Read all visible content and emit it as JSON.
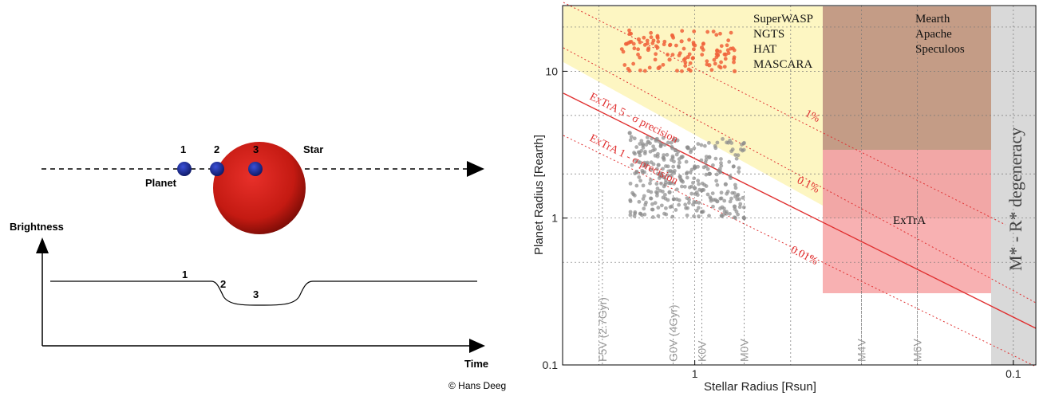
{
  "transit_diagram": {
    "star_label": "Star",
    "planet_label": "Planet",
    "brightness_label": "Brightness",
    "time_label": "Time",
    "positions": [
      "1",
      "2",
      "3"
    ],
    "lightcurve_labels": [
      "1",
      "2",
      "3"
    ],
    "credit": "© Hans Deeg",
    "colors": {
      "star": "#c41a12",
      "planet": "#1a2a9a"
    }
  },
  "chart_data": {
    "type": "scatter",
    "xlabel": "Stellar Radius [Rsun]",
    "ylabel": "Planet Radius [Rearth]",
    "x_scale": "log",
    "y_scale": "log",
    "x_axis_reversed": true,
    "xlim": [
      2.6,
      0.085
    ],
    "ylim": [
      0.1,
      28
    ],
    "x_ticks": [
      {
        "value": 1,
        "label": "1"
      },
      {
        "value": 0.1,
        "label": "0.1"
      }
    ],
    "y_ticks": [
      {
        "value": 0.1,
        "label": "0.1"
      },
      {
        "value": 1,
        "label": "1"
      },
      {
        "value": 10,
        "label": "10"
      }
    ],
    "grid": true,
    "spectral_types": [
      {
        "label": "F5V (2.7Gyr)",
        "x": 1.95
      },
      {
        "label": "G0V (4Gyr)",
        "x": 1.17
      },
      {
        "label": "K0V",
        "x": 0.95
      },
      {
        "label": "M0V",
        "x": 0.7
      },
      {
        "label": "M4V",
        "x": 0.3
      },
      {
        "label": "M6V",
        "x": 0.2
      }
    ],
    "regions": [
      {
        "label_lines": [
          "SuperWASP",
          "NGTS",
          "HAT",
          "MASCARA"
        ],
        "x_range": [
          2.6,
          0.3
        ],
        "y_range": [
          1.2,
          28
        ],
        "color": "#fdf6c2"
      },
      {
        "label_lines": [
          "Mearth",
          "Apache",
          "Speculoos"
        ],
        "x_range": [
          0.3,
          0.12
        ],
        "y_range": [
          1.0,
          28
        ],
        "color": "#c49c86"
      },
      {
        "label_lines": [
          "ExTrA"
        ],
        "x_range": [
          0.3,
          0.12
        ],
        "y_range": [
          0.3,
          3.0
        ],
        "color": "#f7a8aa"
      },
      {
        "label_lines": [
          "M* - R* degeneracy"
        ],
        "x_range": [
          0.105,
          0.085
        ],
        "y_range": [
          0.1,
          28
        ],
        "color": "#d9d9d9"
      }
    ],
    "precision_lines": [
      {
        "label": "1%",
        "style": "dotted"
      },
      {
        "label": "0.1%",
        "style": "dotted"
      },
      {
        "label": "0.01%",
        "style": "dotted"
      },
      {
        "label": "ExTrA 5 - σ precision",
        "style": "solid"
      },
      {
        "label": "ExTrA 1 - σ precision",
        "style": "dotted"
      }
    ],
    "colors": {
      "known_planets": "#8c8c8c",
      "hot_jupiters": "#f0623a",
      "extra_lines": "#e03030"
    },
    "series": [
      {
        "name": "",
        "color": "#8c8c8c",
        "points": [
          [
            1.0,
            2.2
          ],
          [
            1.1,
            1.8
          ],
          [
            0.9,
            2.6
          ],
          [
            1.2,
            1.5
          ],
          [
            0.85,
            1.3
          ],
          [
            1.05,
            3.0
          ],
          [
            1.3,
            2.3
          ],
          [
            0.95,
            1.1
          ],
          [
            0.8,
            1.7
          ],
          [
            1.15,
            2.9
          ],
          [
            1.4,
            3.3
          ],
          [
            0.75,
            1.2
          ],
          [
            1.0,
            1.6
          ],
          [
            0.9,
            2.0
          ],
          [
            1.25,
            1.9
          ],
          [
            1.6,
            3.8
          ],
          [
            0.7,
            1.0
          ],
          [
            1.1,
            2.6
          ]
        ]
      },
      {
        "name": "",
        "color": "#f0623a",
        "points": [
          [
            1.4,
            14
          ],
          [
            1.2,
            12
          ],
          [
            1.0,
            15
          ],
          [
            0.9,
            11
          ],
          [
            1.6,
            18
          ],
          [
            1.1,
            16
          ],
          [
            0.8,
            13
          ],
          [
            1.3,
            10.5
          ],
          [
            1.05,
            12.5
          ],
          [
            0.95,
            14.5
          ],
          [
            0.75,
            10
          ],
          [
            1.5,
            16.5
          ]
        ]
      }
    ]
  }
}
